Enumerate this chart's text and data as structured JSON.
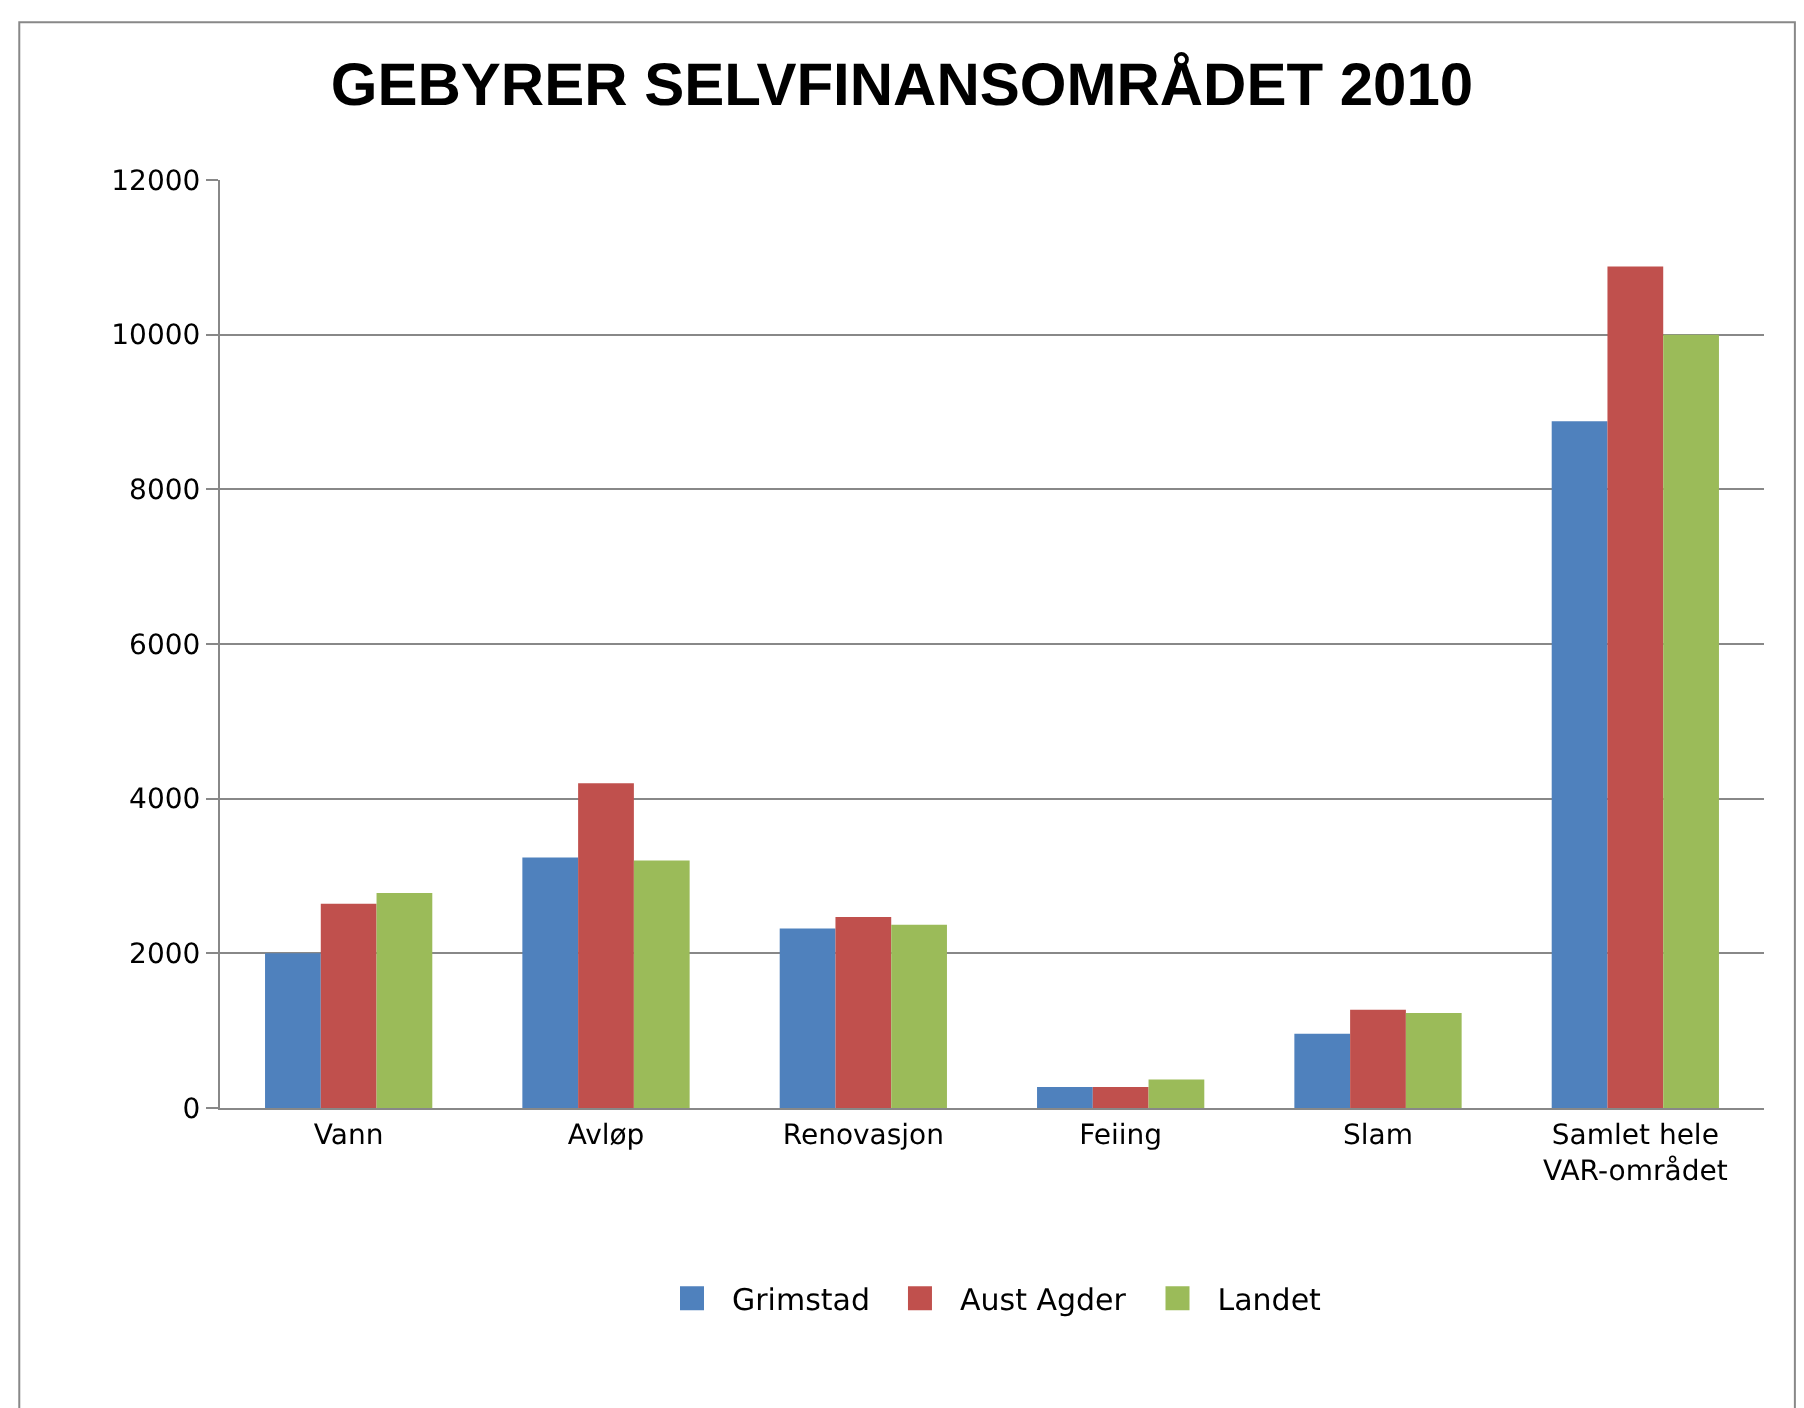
{
  "chart_data": {
    "type": "bar",
    "title": "GEBYRER SELVFINANSOMRÅDET 2010",
    "categories": [
      "Vann",
      "Avløp",
      "Renovasjon",
      "Feiing",
      "Slam",
      "Samlet hele VAR-området"
    ],
    "series": [
      {
        "name": "Grimstad",
        "color": "#4f81bd",
        "values": [
          2000,
          3240,
          2320,
          270,
          960,
          8880
        ]
      },
      {
        "name": "Aust Agder",
        "color": "#c0504d",
        "values": [
          2640,
          4200,
          2470,
          270,
          1270,
          10880
        ]
      },
      {
        "name": "Landet",
        "color": "#9bbb59",
        "values": [
          2780,
          3200,
          2370,
          370,
          1230,
          10000
        ]
      }
    ],
    "ylim": [
      0,
      12000
    ],
    "yticks": [
      0,
      2000,
      4000,
      6000,
      8000,
      10000,
      12000
    ],
    "grid": "y",
    "legend": "bottom"
  }
}
